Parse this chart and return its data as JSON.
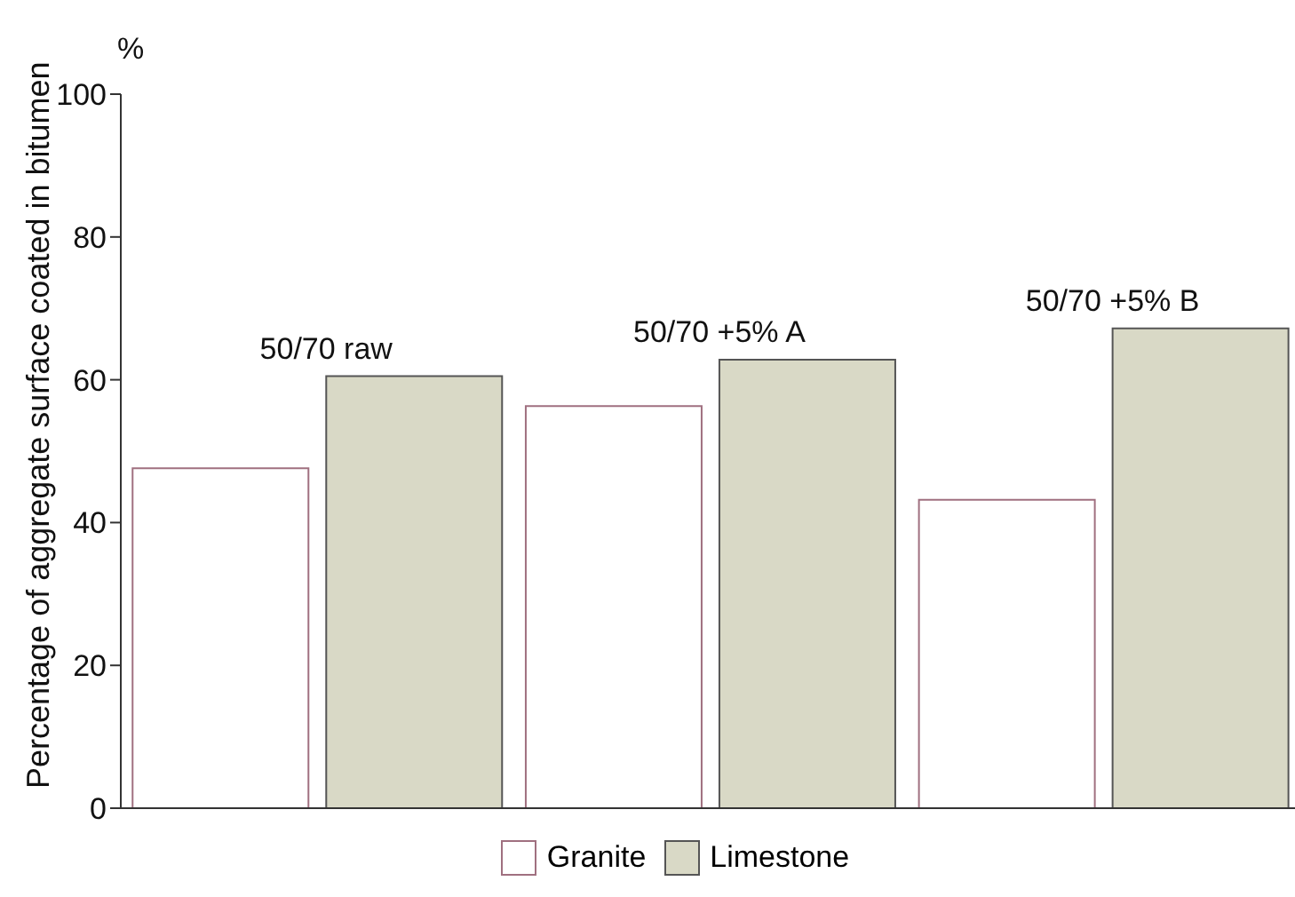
{
  "chart_data": {
    "type": "bar",
    "ylabel": "Percentage of aggregate surface coated in bitumen",
    "annotations": [
      "%"
    ],
    "categories": [
      "50/70 raw",
      "50/70 +5% A",
      "50/70 +5% B"
    ],
    "series": [
      {
        "name": "Granite",
        "color": "#ffffff",
        "values": [
          47.6,
          56.3,
          43.2
        ]
      },
      {
        "name": "Limestone",
        "color": "#d9d9c6",
        "values": [
          60.5,
          62.8,
          67.2
        ]
      }
    ],
    "ylim": [
      0,
      100
    ],
    "yticks": [
      0,
      20,
      40,
      60,
      80,
      100
    ],
    "grid": false,
    "legend": "bottom",
    "tick_labels": "y"
  }
}
